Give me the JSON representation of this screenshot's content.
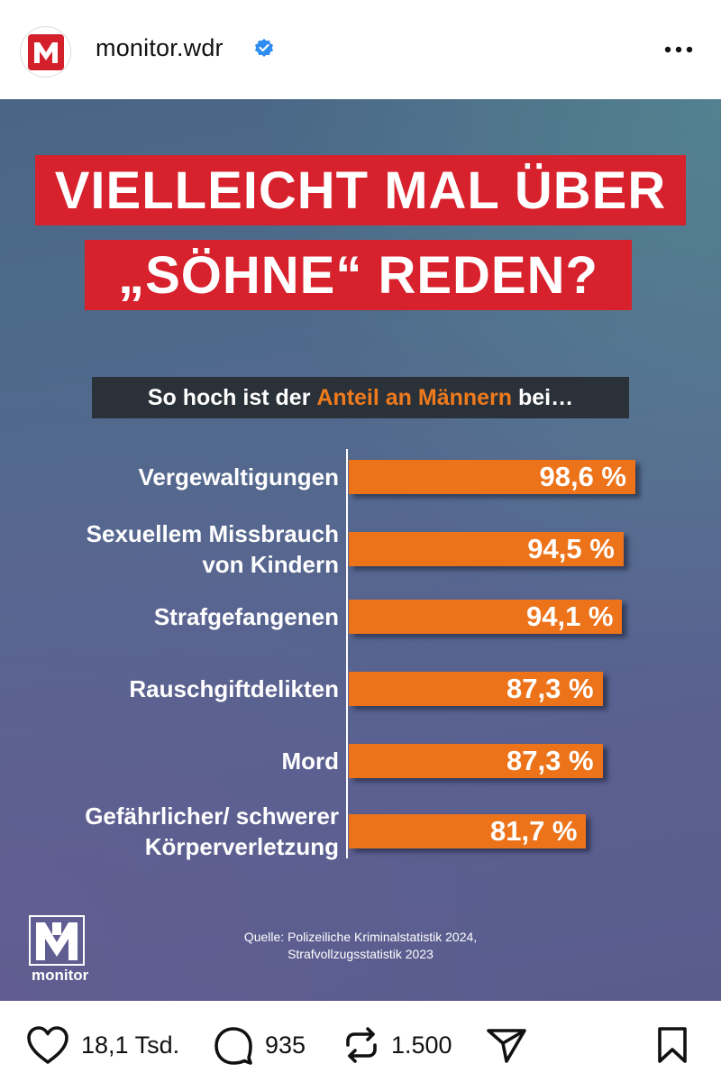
{
  "header": {
    "username": "monitor.wdr",
    "avatar_icon": "monitor-m-logo",
    "verified_icon": "verified-badge-icon",
    "more_icon": "more-options-icon"
  },
  "post": {
    "title_line1": "VIELLEICHT MAL ÜBER",
    "title_line2": "„SÖHNE“ REDEN?",
    "subtitle_prefix": "So hoch ist der ",
    "subtitle_highlight": "Anteil an Männern",
    "subtitle_suffix": " bei…",
    "source_line1": "Quelle: Polizeiliche Kriminalstatistik 2024,",
    "source_line2": "Strafvollzugsstatistik 2023",
    "logo_text": "monitor",
    "colors": {
      "title_bg": "#d7212c",
      "bar": "#ec731a",
      "accent_text": "#ee7a1e",
      "subtitle_bg": "#2a3138"
    }
  },
  "chart_data": {
    "type": "bar",
    "orientation": "horizontal",
    "categories": [
      "Vergewaltigungen",
      "Sexuellem Missbrauch von Kindern",
      "Strafgefangenen",
      "Rauschgiftdelikten",
      "Mord",
      "Gefährlicher/ schwerer Körperverletzung"
    ],
    "category_lines": [
      [
        "Vergewaltigungen"
      ],
      [
        "Sexuellem Missbrauch",
        "von Kindern"
      ],
      [
        "Strafgefangenen"
      ],
      [
        "Rauschgiftdelikten"
      ],
      [
        "Mord"
      ],
      [
        "Gefährlicher/ schwerer",
        "Körperverletzung"
      ]
    ],
    "values": [
      98.6,
      94.5,
      94.1,
      87.3,
      87.3,
      81.7
    ],
    "value_labels": [
      "98,6 %",
      "94,5 %",
      "94,1 %",
      "87,3 %",
      "87,3 %",
      "81,7 %"
    ],
    "unit": "%"
  },
  "actions": {
    "likes": "18,1 Tsd.",
    "comments": "935",
    "reposts": "1.500"
  }
}
